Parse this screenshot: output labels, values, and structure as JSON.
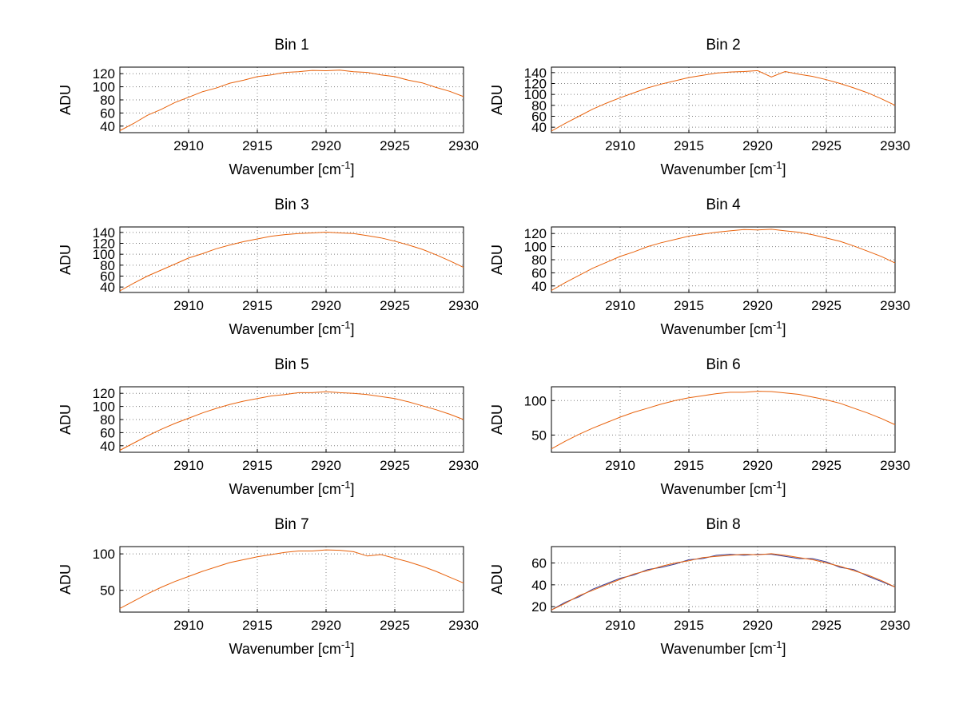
{
  "figure": {
    "background": "#ffffff",
    "grid_color": "#808080",
    "axis_color": "#000000"
  },
  "chart_data": [
    {
      "type": "line",
      "title": "Bin 1",
      "xlabel": "Wavenumber [cm⁻¹]",
      "ylabel": "ADU",
      "xlim": [
        2905,
        2930
      ],
      "ylim": [
        30,
        130
      ],
      "xticks": [
        2910,
        2915,
        2920,
        2925,
        2930
      ],
      "yticks": [
        40,
        60,
        80,
        100,
        120
      ],
      "grid": true,
      "legend": "none",
      "x_start": 2905,
      "x_step": 1,
      "series": [
        {
          "name": "spectrum",
          "color": "#e8620c",
          "y": [
            33,
            44,
            56.5,
            65.5,
            76,
            84,
            92.5,
            98,
            105.5,
            110,
            115.5,
            118,
            122,
            123,
            125,
            124.5,
            125.5,
            123,
            122,
            118,
            115.5,
            110,
            106,
            99,
            93,
            85
          ]
        }
      ]
    },
    {
      "type": "line",
      "title": "Bin 2",
      "xlabel": "Wavenumber [cm⁻¹]",
      "ylabel": "ADU",
      "xlim": [
        2905,
        2930
      ],
      "ylim": [
        30,
        150
      ],
      "xticks": [
        2910,
        2915,
        2920,
        2925,
        2930
      ],
      "yticks": [
        40,
        60,
        80,
        100,
        120,
        140
      ],
      "grid": true,
      "legend": "none",
      "x_start": 2905,
      "x_step": 1,
      "series": [
        {
          "name": "spectrum",
          "color": "#e8620c",
          "y": [
            33,
            47,
            60,
            73,
            84,
            94,
            103,
            112,
            119,
            125,
            131,
            135,
            139,
            141,
            142,
            143.5,
            132,
            142,
            137,
            133,
            127,
            120,
            112,
            103,
            92,
            80
          ]
        }
      ]
    },
    {
      "type": "line",
      "title": "Bin 3",
      "xlabel": "Wavenumber [cm⁻¹]",
      "ylabel": "ADU",
      "xlim": [
        2905,
        2930
      ],
      "ylim": [
        30,
        150
      ],
      "xticks": [
        2910,
        2915,
        2920,
        2925,
        2930
      ],
      "yticks": [
        40,
        60,
        80,
        100,
        120,
        140
      ],
      "grid": true,
      "legend": "none",
      "x_start": 2905,
      "x_step": 1,
      "series": [
        {
          "name": "spectrum",
          "color": "#e8620c",
          "y": [
            33,
            47,
            60,
            71,
            82,
            93,
            101,
            110,
            117,
            123,
            128,
            133,
            136,
            138,
            139,
            140.5,
            139,
            138,
            134,
            130,
            124,
            117,
            109,
            99,
            88,
            76
          ]
        }
      ]
    },
    {
      "type": "line",
      "title": "Bin 4",
      "xlabel": "Wavenumber [cm⁻¹]",
      "ylabel": "ADU",
      "xlim": [
        2905,
        2930
      ],
      "ylim": [
        30,
        130
      ],
      "xticks": [
        2910,
        2915,
        2920,
        2925,
        2930
      ],
      "yticks": [
        40,
        60,
        80,
        100,
        120
      ],
      "grid": true,
      "legend": "none",
      "x_start": 2905,
      "x_step": 1,
      "series": [
        {
          "name": "spectrum",
          "color": "#e8620c",
          "y": [
            33,
            45,
            56,
            67,
            76,
            85,
            92,
            100,
            106,
            111,
            116,
            119,
            122,
            124,
            126,
            125.5,
            126.5,
            124,
            122,
            118,
            113,
            108,
            101,
            93,
            85,
            75
          ]
        }
      ]
    },
    {
      "type": "line",
      "title": "Bin 5",
      "xlabel": "Wavenumber [cm⁻¹]",
      "ylabel": "ADU",
      "xlim": [
        2905,
        2930
      ],
      "ylim": [
        30,
        130
      ],
      "xticks": [
        2910,
        2915,
        2920,
        2925,
        2930
      ],
      "yticks": [
        40,
        60,
        80,
        100,
        120
      ],
      "grid": true,
      "legend": "none",
      "x_start": 2905,
      "x_step": 1,
      "series": [
        {
          "name": "spectrum",
          "color": "#e8620c",
          "y": [
            33,
            44,
            55,
            65,
            74,
            82,
            90,
            97,
            103,
            108,
            112,
            116,
            118,
            121,
            121,
            122.5,
            121,
            120,
            118,
            115,
            112,
            107,
            101,
            95,
            88,
            80
          ]
        }
      ]
    },
    {
      "type": "line",
      "title": "Bin 6",
      "xlabel": "Wavenumber [cm⁻¹]",
      "ylabel": "ADU",
      "xlim": [
        2905,
        2930
      ],
      "ylim": [
        25,
        120
      ],
      "xticks": [
        2910,
        2915,
        2920,
        2925,
        2930
      ],
      "yticks": [
        50,
        100
      ],
      "grid": true,
      "legend": "none",
      "x_start": 2905,
      "x_step": 1,
      "series": [
        {
          "name": "spectrum",
          "color": "#e8620c",
          "y": [
            30,
            41,
            51,
            60,
            68,
            76,
            83,
            89,
            95,
            100,
            104,
            107,
            110,
            112,
            112,
            113.5,
            113,
            111,
            109,
            105,
            101,
            96,
            89,
            82,
            74,
            65
          ]
        }
      ]
    },
    {
      "type": "line",
      "title": "Bin 7",
      "xlabel": "Wavenumber [cm⁻¹]",
      "ylabel": "ADU",
      "xlim": [
        2905,
        2930
      ],
      "ylim": [
        20,
        110
      ],
      "xticks": [
        2910,
        2915,
        2920,
        2925,
        2930
      ],
      "yticks": [
        50,
        100
      ],
      "grid": true,
      "legend": "none",
      "x_start": 2905,
      "x_step": 1,
      "series": [
        {
          "name": "spectrum",
          "color": "#e8620c",
          "y": [
            25,
            35,
            45,
            54,
            62,
            69,
            76,
            82,
            88,
            92,
            96,
            99,
            102,
            104,
            104,
            105.5,
            105,
            103,
            97,
            99,
            94,
            89,
            83,
            76,
            68,
            60
          ]
        }
      ]
    },
    {
      "type": "line",
      "title": "Bin 8",
      "xlabel": "Wavenumber [cm⁻¹]",
      "ylabel": "ADU",
      "xlim": [
        2905,
        2930
      ],
      "ylim": [
        15,
        75
      ],
      "xticks": [
        2910,
        2915,
        2920,
        2925,
        2930
      ],
      "yticks": [
        20,
        40,
        60
      ],
      "grid": true,
      "legend": "none",
      "x_start": 2905,
      "x_step": 1,
      "series": [
        {
          "name": "spectrum-underlay",
          "color": "#3b3b8f",
          "y": [
            17,
            24,
            29,
            36,
            41,
            46,
            49,
            54,
            56,
            59,
            63,
            64,
            67,
            68,
            67,
            68,
            68,
            66,
            64,
            64,
            61,
            56,
            54,
            48,
            43,
            38
          ]
        },
        {
          "name": "spectrum",
          "color": "#e8620c",
          "y": [
            17,
            23,
            30,
            35,
            40,
            45,
            50,
            53,
            57,
            60,
            62,
            65,
            66,
            67,
            68,
            67.5,
            68.5,
            67,
            65,
            63,
            60,
            57,
            53,
            49,
            44,
            38
          ]
        }
      ]
    }
  ]
}
